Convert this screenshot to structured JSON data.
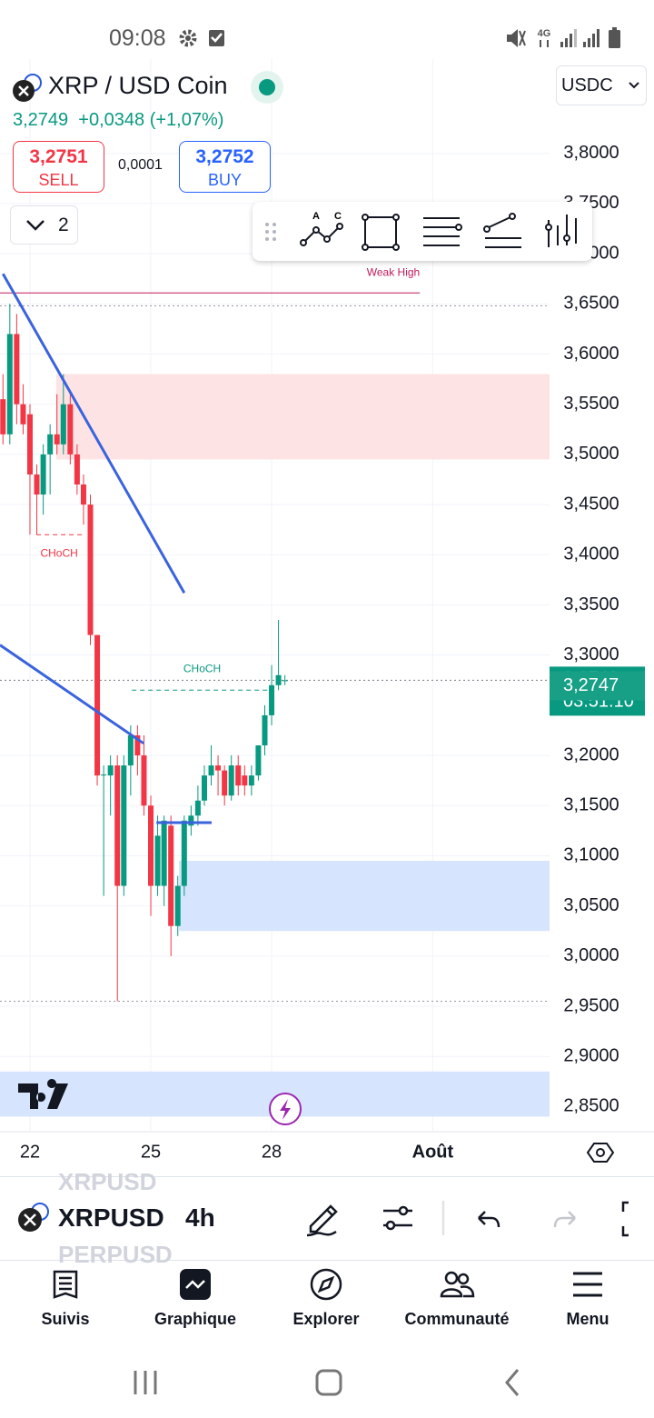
{
  "status_bar": {
    "time": "09:08",
    "network": "4G"
  },
  "header": {
    "symbol": "XRP / USD Coin",
    "price": "3,2749",
    "change": "+0,0348 (+1,07%)",
    "sell_price": "3,2751",
    "sell_label": "SELL",
    "spread": "0,0001",
    "buy_price": "3,2752",
    "buy_label": "BUY",
    "collapse_count": "2",
    "currency": "USDC"
  },
  "drawing_tools": {
    "pattern_labels": [
      "A",
      "C"
    ]
  },
  "chart_data": {
    "type": "candlestick",
    "x": [
      21.33,
      21.5,
      21.67,
      21.83,
      22.0,
      22.17,
      22.33,
      22.5,
      22.67,
      22.83,
      23.0,
      23.17,
      23.33,
      23.5,
      23.67,
      23.83,
      24.0,
      24.17,
      24.33,
      24.5,
      24.67,
      24.83,
      25.0,
      25.17,
      25.33,
      25.5,
      25.67,
      25.83,
      26.0,
      26.17,
      26.33,
      26.5,
      26.67,
      26.83,
      27.0,
      27.17,
      27.33,
      27.5,
      27.67,
      27.83,
      28.0,
      28.17,
      28.33
    ],
    "open": [
      3.555,
      3.52,
      3.62,
      3.55,
      3.54,
      3.48,
      3.46,
      3.5,
      3.52,
      3.51,
      3.55,
      3.5,
      3.47,
      3.45,
      3.32,
      3.18,
      3.18,
      3.19,
      3.07,
      3.19,
      3.22,
      3.2,
      3.15,
      3.07,
      3.07,
      3.13,
      3.03,
      3.07,
      3.13,
      3.14,
      3.155,
      3.18,
      3.19,
      3.185,
      3.16,
      3.19,
      3.18,
      3.17,
      3.18,
      3.21,
      3.24,
      3.27,
      3.274
    ],
    "high": [
      3.58,
      3.65,
      3.64,
      3.57,
      3.55,
      3.49,
      3.51,
      3.53,
      3.56,
      3.58,
      3.56,
      3.51,
      3.48,
      3.46,
      3.32,
      3.19,
      3.2,
      3.2,
      3.2,
      3.23,
      3.23,
      3.22,
      3.16,
      3.14,
      3.14,
      3.14,
      3.08,
      3.14,
      3.15,
      3.17,
      3.19,
      3.21,
      3.2,
      3.19,
      3.2,
      3.2,
      3.19,
      3.19,
      3.21,
      3.25,
      3.29,
      3.335,
      3.28
    ],
    "low": [
      3.51,
      3.51,
      3.53,
      3.52,
      3.42,
      3.42,
      3.44,
      3.46,
      3.5,
      3.5,
      3.49,
      3.46,
      3.43,
      3.31,
      3.17,
      3.06,
      3.14,
      2.955,
      3.06,
      3.16,
      3.18,
      3.14,
      3.04,
      3.06,
      3.05,
      3.0,
      3.02,
      3.06,
      3.12,
      3.13,
      3.15,
      3.17,
      3.16,
      3.15,
      3.155,
      3.16,
      3.16,
      3.16,
      3.175,
      3.2,
      3.23,
      3.265,
      3.27
    ],
    "close": [
      3.52,
      3.62,
      3.55,
      3.53,
      3.48,
      3.46,
      3.5,
      3.52,
      3.51,
      3.55,
      3.5,
      3.47,
      3.45,
      3.32,
      3.18,
      3.181,
      3.19,
      3.07,
      3.19,
      3.22,
      3.2,
      3.15,
      3.07,
      3.12,
      3.135,
      3.03,
      3.07,
      3.135,
      3.14,
      3.155,
      3.18,
      3.19,
      3.185,
      3.16,
      3.19,
      3.17,
      3.17,
      3.18,
      3.21,
      3.24,
      3.27,
      3.28,
      3.2749
    ],
    "up_color": "#089981",
    "down_color": "#f23645",
    "xlim": [
      21.256,
      34.9
    ],
    "ylim": [
      2.825,
      3.894
    ],
    "xticks": [
      22,
      25,
      28,
      {
        "value": 32,
        "label": "Août"
      }
    ],
    "yticks": [
      {
        "value": 3.8,
        "label": "3,8000"
      },
      {
        "value": 3.75,
        "label": "3,7500"
      },
      {
        "value": 3.7,
        "label": "3,7000"
      },
      {
        "value": 3.65,
        "label": "3,6500"
      },
      {
        "value": 3.6,
        "label": "3,6000"
      },
      {
        "value": 3.55,
        "label": "3,5500"
      },
      {
        "value": 3.5,
        "label": "3,5000"
      },
      {
        "value": 3.45,
        "label": "3,4500"
      },
      {
        "value": 3.4,
        "label": "3,4000"
      },
      {
        "value": 3.35,
        "label": "3,3500"
      },
      {
        "value": 3.3,
        "label": "3,3000"
      },
      {
        "value": 3.2,
        "label": "3,2000"
      },
      {
        "value": 3.15,
        "label": "3,1500"
      },
      {
        "value": 3.1,
        "label": "3,1000"
      },
      {
        "value": 3.05,
        "label": "3,0500"
      },
      {
        "value": 3.0,
        "label": "3,0000"
      },
      {
        "value": 2.95,
        "label": "2,9500"
      },
      {
        "value": 2.9,
        "label": "2,9000"
      },
      {
        "value": 2.85,
        "label": "2,8500"
      }
    ],
    "grid": true,
    "zones": [
      {
        "low": 3.495,
        "high": 3.58,
        "start": 22.65,
        "color": "#fde3e3"
      },
      {
        "low": 3.025,
        "high": 3.095,
        "start": 25.7,
        "color": "#d6e4fd"
      },
      {
        "low": 2.84,
        "high": 2.885,
        "start": 21.256,
        "color": "#d6e4fd"
      }
    ],
    "levels": [
      {
        "value": 3.661,
        "start": 21.256,
        "end": 31.68,
        "color": "#c2185b",
        "dash": "",
        "label": "Weak High"
      },
      {
        "value": 3.648,
        "start": 21.256,
        "end": 34.9,
        "color": "#9598a1",
        "dash": "2 3"
      },
      {
        "value": 2.955,
        "start": 21.256,
        "end": 34.9,
        "color": "#9598a1",
        "dash": "2 3"
      },
      {
        "value": 3.42,
        "start": 22.16,
        "end": 23.29,
        "color": "#f23645",
        "dash": "5 4",
        "label": "CHoCH"
      },
      {
        "value": 3.265,
        "start": 24.53,
        "end": 28.02,
        "color": "#089981",
        "dash": "5 4",
        "label": "CHoCH"
      }
    ],
    "trendlines": [
      {
        "x": [
          21.33,
          25.83
        ],
        "y": [
          3.68,
          3.362
        ],
        "color": "#3a63dd"
      },
      {
        "x": [
          21.256,
          24.82
        ],
        "y": [
          3.31,
          3.212
        ],
        "color": "#3a63dd"
      },
      {
        "x": [
          25.14,
          26.51
        ],
        "y": [
          3.133,
          3.133
        ],
        "color": "#3a63dd"
      }
    ],
    "last_price": {
      "value": 3.2749,
      "label": "3,2749"
    },
    "countdown": "03:51:10",
    "bid_price": {
      "value": 3.2747,
      "label": "3,2747"
    }
  },
  "toolbar": {
    "symbol": "XRPUSD",
    "interval": "4h",
    "ghost_above": "XRPUSD",
    "ghost_below": "PERPUSD"
  },
  "nav": [
    {
      "label": "Suivis"
    },
    {
      "label": "Graphique"
    },
    {
      "label": "Explorer"
    },
    {
      "label": "Communauté"
    },
    {
      "label": "Menu"
    }
  ]
}
